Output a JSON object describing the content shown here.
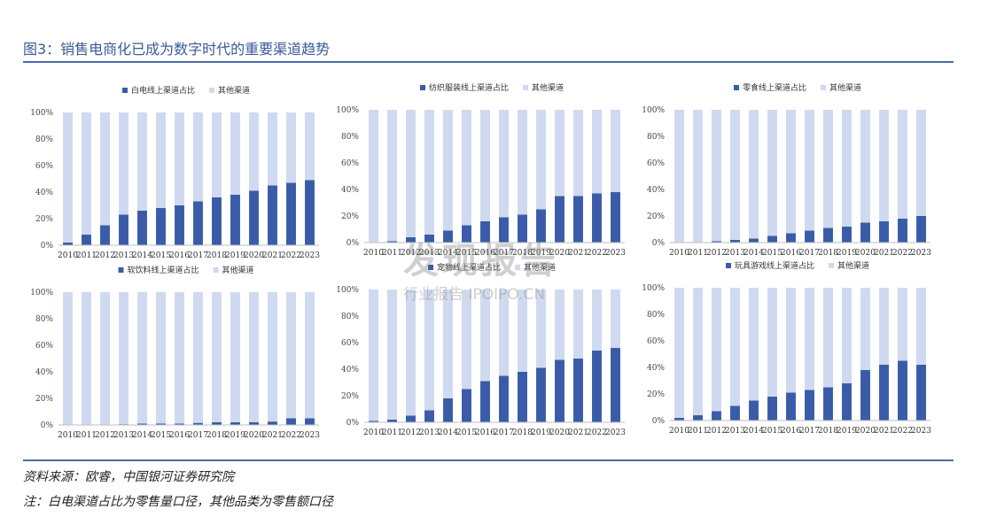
{
  "figure": {
    "title": "图3：销售电商化已成为数字时代的重要渠道趋势",
    "source": "资料来源：欧睿，中国银河证券研究院",
    "note": "注：白电渠道占比为零售量口径，其他品类为零售额口径"
  },
  "watermark": {
    "main": "发现报告",
    "sub": "行业报告 IPOIPO.CN"
  },
  "colors": {
    "online": "#3a5ca8",
    "other": "#cfdaf0",
    "rule": "#4a6aa8",
    "title": "#3a5a97"
  },
  "chart_data": [
    {
      "type": "bar",
      "stacked": "percent",
      "categories": [
        "2010",
        "2011",
        "2012",
        "2013",
        "2014",
        "2015",
        "2016",
        "2017",
        "2018",
        "2019",
        "2020",
        "2021",
        "2022",
        "2023"
      ],
      "yticks": [
        "0%",
        "20%",
        "40%",
        "60%",
        "80%",
        "100%"
      ],
      "ylim": [
        0,
        100
      ],
      "legend": "top",
      "series": [
        {
          "name": "白电线上渠道占比",
          "values": [
            2,
            8,
            15,
            23,
            26,
            28,
            30,
            33,
            36,
            38,
            41,
            45,
            47,
            49
          ]
        },
        {
          "name": "其他渠道",
          "values": [
            98,
            92,
            85,
            77,
            74,
            72,
            70,
            67,
            64,
            62,
            59,
            55,
            53,
            51
          ]
        }
      ]
    },
    {
      "type": "bar",
      "stacked": "percent",
      "categories": [
        "2010",
        "2011",
        "2012",
        "2013",
        "2014",
        "2015",
        "2016",
        "2017",
        "2018",
        "2019",
        "2020",
        "2021",
        "2022",
        "2023"
      ],
      "yticks": [
        "0%",
        "20%",
        "40%",
        "60%",
        "80%",
        "100%"
      ],
      "ylim": [
        0,
        100
      ],
      "legend": "top",
      "series": [
        {
          "name": "纺织服装线上渠道占比",
          "values": [
            0,
            1,
            4,
            6,
            9,
            13,
            16,
            19,
            21,
            25,
            35,
            35,
            37,
            38
          ]
        },
        {
          "name": "其他渠道",
          "values": [
            100,
            99,
            96,
            94,
            91,
            87,
            84,
            81,
            79,
            75,
            65,
            65,
            63,
            62
          ]
        }
      ]
    },
    {
      "type": "bar",
      "stacked": "percent",
      "categories": [
        "2010",
        "2011",
        "2012",
        "2013",
        "2014",
        "2015",
        "2016",
        "2017",
        "2018",
        "2019",
        "2020",
        "2021",
        "2022",
        "2023"
      ],
      "yticks": [
        "0%",
        "20%",
        "40%",
        "60%",
        "80%",
        "100%"
      ],
      "ylim": [
        0,
        100
      ],
      "legend": "top",
      "series": [
        {
          "name": "零食线上渠道占比",
          "values": [
            0,
            0,
            1,
            2,
            3,
            5,
            7,
            9,
            11,
            12,
            15,
            16,
            18,
            20
          ]
        },
        {
          "name": "其他渠道",
          "values": [
            100,
            100,
            99,
            98,
            97,
            95,
            93,
            91,
            89,
            88,
            85,
            84,
            82,
            80
          ]
        }
      ]
    },
    {
      "type": "bar",
      "stacked": "percent",
      "categories": [
        "2010",
        "2011",
        "2012",
        "2013",
        "2014",
        "2015",
        "2016",
        "2017",
        "2018",
        "2019",
        "2020",
        "2021",
        "2022",
        "2023"
      ],
      "yticks": [
        "0%",
        "20%",
        "40%",
        "60%",
        "80%",
        "100%"
      ],
      "ylim": [
        0,
        100
      ],
      "legend": "top",
      "series": [
        {
          "name": "软饮料线上渠道占比",
          "values": [
            0,
            0,
            0,
            0.5,
            1,
            1,
            1,
            1.5,
            2,
            2,
            2,
            2.5,
            5,
            5
          ]
        },
        {
          "name": "其他渠道",
          "values": [
            100,
            100,
            100,
            99.5,
            99,
            99,
            99,
            98.5,
            98,
            98,
            98,
            97.5,
            95,
            95
          ]
        }
      ]
    },
    {
      "type": "bar",
      "stacked": "percent",
      "categories": [
        "2010",
        "2011",
        "2012",
        "2013",
        "2014",
        "2015",
        "2016",
        "2017",
        "2018",
        "2019",
        "2020",
        "2021",
        "2022",
        "2023"
      ],
      "yticks": [
        "0%",
        "20%",
        "40%",
        "60%",
        "80%",
        "100%"
      ],
      "ylim": [
        0,
        100
      ],
      "legend": "top",
      "series": [
        {
          "name": "宠物线上渠道占比",
          "values": [
            1,
            2,
            5,
            9,
            18,
            25,
            31,
            35,
            38,
            41,
            47,
            48,
            54,
            56
          ]
        },
        {
          "name": "其他渠道",
          "values": [
            99,
            98,
            95,
            91,
            82,
            75,
            69,
            65,
            62,
            59,
            53,
            52,
            46,
            44
          ]
        }
      ]
    },
    {
      "type": "bar",
      "stacked": "percent",
      "categories": [
        "2010",
        "2011",
        "2012",
        "2013",
        "2014",
        "2015",
        "2016",
        "2017",
        "2018",
        "2019",
        "2020",
        "2021",
        "2022",
        "2023"
      ],
      "yticks": [
        "0%",
        "20%",
        "40%",
        "60%",
        "80%",
        "100%"
      ],
      "ylim": [
        0,
        100
      ],
      "legend": "top",
      "series": [
        {
          "name": "玩具游戏线上渠道占比",
          "values": [
            2,
            4,
            7,
            11,
            15,
            18,
            21,
            23,
            25,
            28,
            38,
            42,
            45,
            42
          ]
        },
        {
          "name": "其他渠道",
          "values": [
            98,
            96,
            93,
            89,
            85,
            82,
            79,
            77,
            75,
            72,
            62,
            58,
            55,
            58
          ]
        }
      ]
    }
  ]
}
